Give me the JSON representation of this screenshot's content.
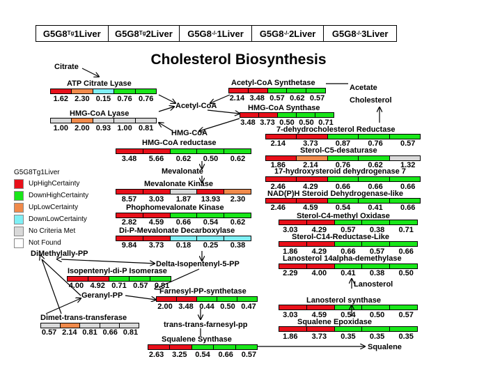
{
  "colors": {
    "UpHighCertainty": "#e8101a",
    "DownHighCertainty": "#19e619",
    "UpLowCertainty": "#f08a4b",
    "DownLowCertainty": "#7ff0f5",
    "NoCriteriaMet": "#d9d9d9",
    "NotFound": "#ffffff"
  },
  "header": {
    "cells": [
      {
        "prefix": "G5G8",
        "sup": "Tg",
        "suffix": "1Liver"
      },
      {
        "prefix": "G5G8",
        "sup": "Tg",
        "suffix": "2Liver"
      },
      {
        "prefix": "G5G8",
        "sup": "-/-",
        "suffix": "1Liver"
      },
      {
        "prefix": "G5G8",
        "sup": "-/-",
        "suffix": "2Liver"
      },
      {
        "prefix": "G5G8",
        "sup": "-/-",
        "suffix": "3Liver"
      }
    ]
  },
  "title": "Cholesterol Biosynthesis",
  "legend": {
    "title": "G5G8Tg1Liver",
    "items": [
      {
        "label": "UpHighCertainty",
        "key": "UpHighCertainty"
      },
      {
        "label": "DownHighCertainty",
        "key": "DownHighCertainty"
      },
      {
        "label": "UpLowCertainty",
        "key": "UpLowCertainty"
      },
      {
        "label": "DownLowCertainty",
        "key": "DownLowCertainty"
      },
      {
        "label": "No Criteria Met",
        "key": "NoCriteriaMet"
      },
      {
        "label": "Not Found",
        "key": "NotFound"
      }
    ]
  },
  "metabolites": {
    "citrate": "Citrate",
    "acetate": "Acetate",
    "acetyl_coa": "Acetyl-CoA",
    "hmg_coa": "HMG-CoA",
    "mevalonate": "Mevalonate",
    "delta_isopentenyl": "Delta-Isopentenyl-5-PP",
    "dimethylallyl": "DiMethylally-PP",
    "geranyl": "Geranyl-PP",
    "trans_farnesyl": "trans-trans-farnesyl-pp",
    "squalene": "Squalene",
    "lanosterol": "Lanosterol",
    "cholesterol": "Cholesterol"
  },
  "enzymes": [
    {
      "name": "ATP Citrate Lyase",
      "values": [
        "1.62",
        "2.30",
        "0.15",
        "0.76",
        "0.76"
      ],
      "status": [
        "UpHighCertainty",
        "UpLowCertainty",
        "DownLowCertainty",
        "DownHighCertainty",
        "DownHighCertainty"
      ]
    },
    {
      "name": "HMG-CoA Lyase",
      "values": [
        "1.00",
        "2.00",
        "0.93",
        "1.00",
        "0.81"
      ],
      "status": [
        "NoCriteriaMet",
        "UpLowCertainty",
        "NoCriteriaMet",
        "NoCriteriaMet",
        "NoCriteriaMet"
      ]
    },
    {
      "name": "Acetyl-CoA Synthetase",
      "values": [
        "2.14",
        "3.48",
        "0.57",
        "0.62",
        "0.57"
      ],
      "status": [
        "UpHighCertainty",
        "UpHighCertainty",
        "DownHighCertainty",
        "DownHighCertainty",
        "DownHighCertainty"
      ]
    },
    {
      "name": "HMG-CoA Synthase",
      "values": [
        "3.48",
        "3.73",
        "0.50",
        "0.50",
        "0.71"
      ],
      "status": [
        "UpHighCertainty",
        "UpHighCertainty",
        "DownHighCertainty",
        "DownHighCertainty",
        "DownHighCertainty"
      ]
    },
    {
      "name": "HMG-CoA reductase",
      "values": [
        "3.48",
        "5.66",
        "0.62",
        "0.50",
        "0.62"
      ],
      "status": [
        "UpHighCertainty",
        "UpHighCertainty",
        "DownHighCertainty",
        "DownHighCertainty",
        "DownHighCertainty"
      ]
    },
    {
      "name": "Mevalonate Kinase",
      "values": [
        "8.57",
        "3.03",
        "1.87",
        "13.93",
        "2.30"
      ],
      "status": [
        "UpHighCertainty",
        "UpHighCertainty",
        "NoCriteriaMet",
        "UpHighCertainty",
        "UpLowCertainty"
      ]
    },
    {
      "name": "Phophomevalonate Kinase",
      "values": [
        "2.82",
        "4.59",
        "0.66",
        "0.54",
        "0.62"
      ],
      "status": [
        "UpHighCertainty",
        "UpHighCertainty",
        "DownHighCertainty",
        "DownHighCertainty",
        "DownHighCertainty"
      ]
    },
    {
      "name": "Di-P-Mevalonate Decarboxylase",
      "values": [
        "9.84",
        "3.73",
        "0.18",
        "0.25",
        "0.38"
      ],
      "status": [
        "UpHighCertainty",
        "UpHighCertainty",
        "DownLowCertainty",
        "DownLowCertainty",
        "DownLowCertainty"
      ]
    },
    {
      "name": "Isopentenyl-di-P Isomerase",
      "values": [
        "4.00",
        "4.92",
        "0.71",
        "0.57",
        "0.81"
      ],
      "status": [
        "UpHighCertainty",
        "UpHighCertainty",
        "DownHighCertainty",
        "DownHighCertainty",
        "DownHighCertainty"
      ]
    },
    {
      "name": "Dimet-trans-transferase",
      "values": [
        "0.57",
        "2.14",
        "0.81",
        "0.66",
        "0.81"
      ],
      "status": [
        "NoCriteriaMet",
        "UpLowCertainty",
        "NoCriteriaMet",
        "NoCriteriaMet",
        "NoCriteriaMet"
      ]
    },
    {
      "name": "Farnesyl-PP-synthetase",
      "values": [
        "2.00",
        "3.48",
        "0.44",
        "0.50",
        "0.47"
      ],
      "status": [
        "UpHighCertainty",
        "UpHighCertainty",
        "DownHighCertainty",
        "DownHighCertainty",
        "DownHighCertainty"
      ]
    },
    {
      "name": "Squalene Synthase",
      "values": [
        "2.63",
        "3.25",
        "0.54",
        "0.66",
        "0.57"
      ],
      "status": [
        "UpHighCertainty",
        "UpHighCertainty",
        "DownHighCertainty",
        "DownHighCertainty",
        "DownHighCertainty"
      ]
    },
    {
      "name": "7-dehydrocholesterol Reductase",
      "values": [
        "2.14",
        "3.73",
        "0.87",
        "0.76",
        "0.57"
      ],
      "status": [
        "UpHighCertainty",
        "UpHighCertainty",
        "DownHighCertainty",
        "DownHighCertainty",
        "DownHighCertainty"
      ]
    },
    {
      "name": "Sterol-C5-desaturase",
      "values": [
        "1.86",
        "2.14",
        "0.76",
        "0.62",
        "1.32"
      ],
      "status": [
        "UpHighCertainty",
        "UpLowCertainty",
        "DownHighCertainty",
        "DownHighCertainty",
        "NoCriteriaMet"
      ]
    },
    {
      "name": "17-hydroxysteroid dehydrogenase 7",
      "values": [
        "2.46",
        "4.29",
        "0.66",
        "0.66",
        "0.66"
      ],
      "status": [
        "UpHighCertainty",
        "UpHighCertainty",
        "DownHighCertainty",
        "DownHighCertainty",
        "DownHighCertainty"
      ]
    },
    {
      "name": "NAD(P)H Steroid Dehydrogenase-like",
      "values": [
        "2.46",
        "4.59",
        "0.54",
        "0.41",
        "0.66"
      ],
      "status": [
        "UpHighCertainty",
        "UpHighCertainty",
        "DownHighCertainty",
        "DownHighCertainty",
        "DownHighCertainty"
      ]
    },
    {
      "name": "Sterol-C4-methyl Oxidase",
      "values": [
        "3.03",
        "4.29",
        "0.57",
        "0.38",
        "0.71"
      ],
      "status": [
        "UpHighCertainty",
        "UpHighCertainty",
        "DownHighCertainty",
        "DownHighCertainty",
        "DownHighCertainty"
      ]
    },
    {
      "name": "Sterol-C14-Reductase-Like",
      "values": [
        "1.86",
        "4.29",
        "0.66",
        "0.57",
        "0.66"
      ],
      "status": [
        "UpHighCertainty",
        "UpHighCertainty",
        "DownHighCertainty",
        "DownHighCertainty",
        "DownHighCertainty"
      ]
    },
    {
      "name": "Lanosterol 14alpha-demethylase",
      "values": [
        "2.29",
        "4.00",
        "0.41",
        "0.38",
        "0.50"
      ],
      "status": [
        "UpHighCertainty",
        "UpHighCertainty",
        "DownHighCertainty",
        "DownHighCertainty",
        "DownHighCertainty"
      ]
    },
    {
      "name": "Lanosterol synthase",
      "values": [
        "3.03",
        "4.59",
        "0.54",
        "0.50",
        "0.57"
      ],
      "status": [
        "UpHighCertainty",
        "UpHighCertainty",
        "DownHighCertainty",
        "DownHighCertainty",
        "DownHighCertainty"
      ]
    },
    {
      "name": "Squalene Epoxidase",
      "values": [
        "1.86",
        "3.73",
        "0.35",
        "0.35",
        "0.35"
      ],
      "status": [
        "UpHighCertainty",
        "UpHighCertainty",
        "DownHighCertainty",
        "DownHighCertainty",
        "DownHighCertainty"
      ]
    }
  ]
}
